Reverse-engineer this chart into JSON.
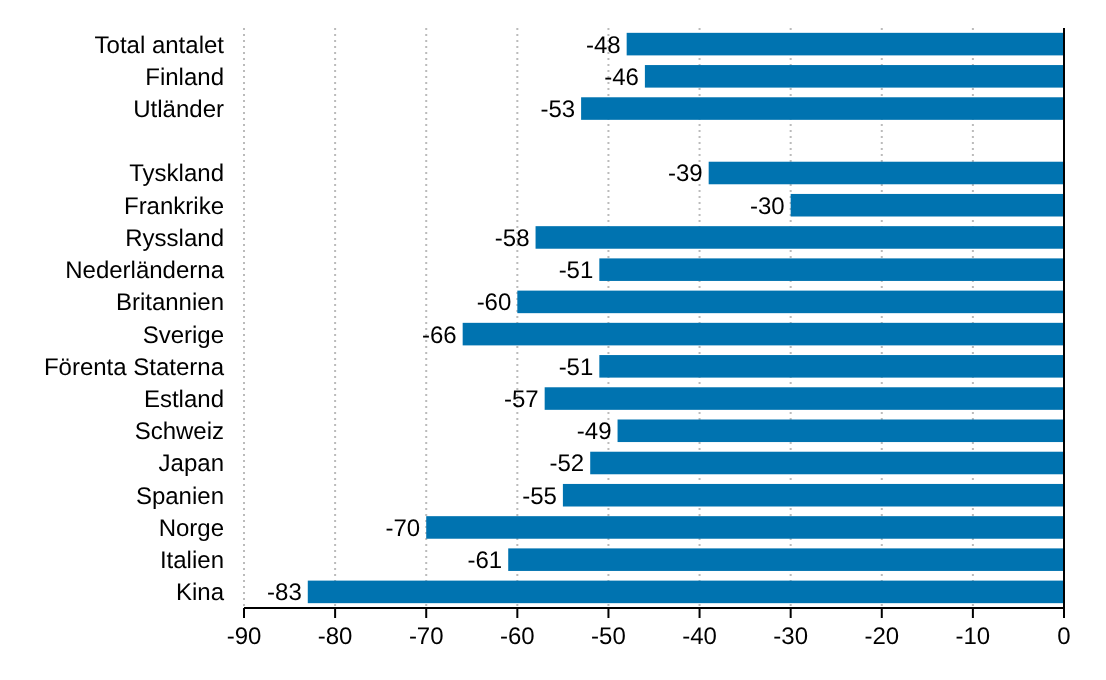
{
  "chart_data": {
    "type": "bar",
    "orientation": "horizontal",
    "categories": [
      "Total antalet",
      "Finland",
      "Utländer",
      null,
      "Tyskland",
      "Frankrike",
      "Ryssland",
      "Nederländerna",
      "Britannien",
      "Sverige",
      "Förenta Staterna",
      "Estland",
      "Schweiz",
      "Japan",
      "Spanien",
      "Norge",
      "Italien",
      "Kina"
    ],
    "values": [
      -48,
      -46,
      -53,
      null,
      -39,
      -30,
      -58,
      -51,
      -60,
      -66,
      -51,
      -57,
      -49,
      -52,
      -55,
      -70,
      -61,
      -83
    ],
    "color": "#0073b0",
    "xlim": [
      -90,
      0
    ],
    "xticks": [
      -90,
      -80,
      -70,
      -60,
      -50,
      -40,
      -30,
      -20,
      -10,
      0
    ],
    "grid": "x",
    "data_labels": true
  }
}
